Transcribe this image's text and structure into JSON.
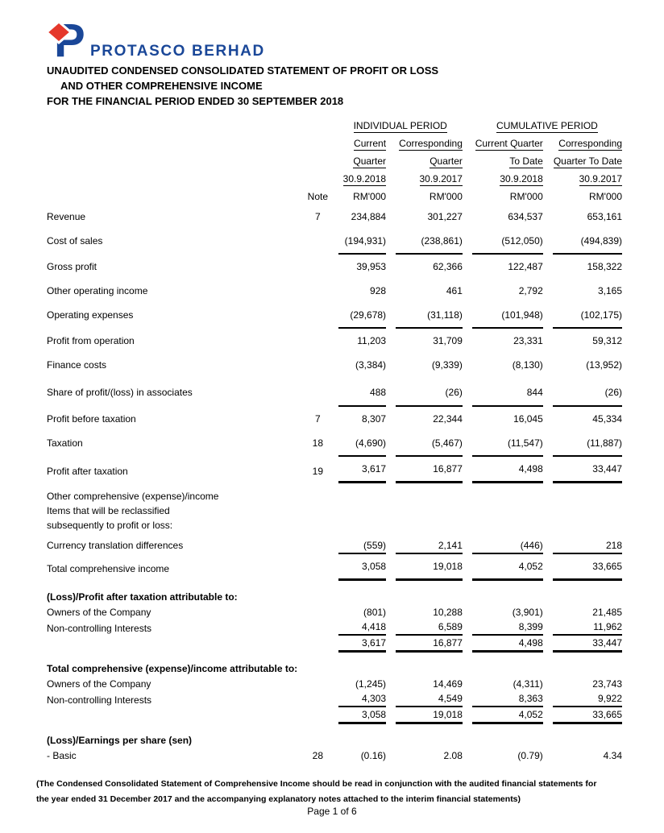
{
  "brand": {
    "company": "PROTASCO BERHAD",
    "blue": "#1a4798",
    "red": "#e5382b",
    "logo_icon": "protasco-p-with-red-diamond"
  },
  "title": {
    "line1": "UNAUDITED CONDENSED CONSOLIDATED STATEMENT OF PROFIT OR LOSS",
    "line2": "AND OTHER COMPREHENSIVE INCOME",
    "line3": "FOR THE FINANCIAL PERIOD ENDED 30 SEPTEMBER 2018"
  },
  "table": {
    "group_headers": [
      {
        "label": "INDIVIDUAL PERIOD"
      },
      {
        "label": "CUMULATIVE PERIOD"
      }
    ],
    "note_header": "Note",
    "columns": [
      {
        "line1": "Current",
        "line2": "Quarter",
        "date": "30.9.2018",
        "unit": "RM'000"
      },
      {
        "line1": "Corresponding",
        "line2": "Quarter",
        "date": "30.9.2017",
        "unit": "RM'000"
      },
      {
        "line1": "Current Quarter",
        "line2": "To Date",
        "date": "30.9.2018",
        "unit": "RM'000"
      },
      {
        "line1": "Corresponding",
        "line2": "Quarter To Date",
        "date": "30.9.2017",
        "unit": "RM'000"
      }
    ],
    "rows": [
      {
        "label": "Revenue",
        "note": "7",
        "values": [
          "234,884",
          "301,227",
          "634,537",
          "653,161"
        ],
        "cls": "n"
      },
      {
        "label": "Cost of sales",
        "note": "",
        "values": [
          "(194,931)",
          "(238,861)",
          "(512,050)",
          "(494,839)"
        ],
        "cls": "n"
      },
      {
        "label": "Gross profit",
        "note": "",
        "values": [
          "39,953",
          "62,366",
          "122,487",
          "158,322"
        ],
        "cls": "n lt"
      },
      {
        "label": "Other operating income",
        "note": "",
        "values": [
          "928",
          "461",
          "2,792",
          "3,165"
        ],
        "cls": "n"
      },
      {
        "label": "Operating expenses",
        "note": "",
        "values": [
          "(29,678)",
          "(31,118)",
          "(101,948)",
          "(102,175)"
        ],
        "cls": "n"
      },
      {
        "label": "Profit from operation",
        "note": "",
        "values": [
          "11,203",
          "31,709",
          "23,331",
          "59,312"
        ],
        "cls": "n lt"
      },
      {
        "label": "Finance costs",
        "note": "",
        "values": [
          "(3,384)",
          "(9,339)",
          "(8,130)",
          "(13,952)"
        ],
        "cls": "n"
      },
      {
        "label": "Share of profit/(loss) in associates",
        "note": "",
        "values": [
          "488",
          "(26)",
          "844",
          "(26)"
        ],
        "cls": "n sp"
      },
      {
        "label": "Profit before taxation",
        "note": "7",
        "values": [
          "8,307",
          "22,344",
          "16,045",
          "45,334"
        ],
        "cls": "n lt"
      },
      {
        "label": "Taxation",
        "note": "18",
        "values": [
          "(4,690)",
          "(5,467)",
          "(11,547)",
          "(11,887)"
        ],
        "cls": "n"
      },
      {
        "label": "Profit after taxation",
        "note": "19",
        "values": [
          "3,617",
          "16,877",
          "4,498",
          "33,447"
        ],
        "cls": "n lt lb"
      },
      {
        "label": "Other comprehensive (expense)/income",
        "note": "",
        "cls": "t mt"
      },
      {
        "label": "Items that will be reclassified",
        "note": "",
        "cls": "t"
      },
      {
        "label": "subsequently to profit or loss:",
        "note": "",
        "cls": "t"
      },
      {
        "label": "Currency translation differences",
        "note": "",
        "values": [
          "(559)",
          "2,141",
          "(446)",
          "218"
        ],
        "cls": "t mt"
      },
      {
        "label": "Total comprehensive income",
        "note": "",
        "values": [
          "3,058",
          "19,018",
          "4,052",
          "33,665"
        ],
        "cls": "n lt lb"
      },
      {
        "label": "(Loss)/Profit after taxation attributable to:",
        "note": "",
        "cls": "sec"
      },
      {
        "label": "Owners of the Company",
        "note": "",
        "values": [
          "(801)",
          "10,288",
          "(3,901)",
          "21,485"
        ],
        "cls": "t"
      },
      {
        "label": "Non-controlling Interests",
        "note": "",
        "values": [
          "4,418",
          "6,589",
          "8,399",
          "11,962"
        ],
        "cls": "t ub"
      },
      {
        "label": "",
        "note": "",
        "values": [
          "3,617",
          "16,877",
          "4,498",
          "33,447"
        ],
        "cls": "t lb"
      },
      {
        "label": "Total comprehensive (expense)/income attributable to:",
        "note": "",
        "cls": "sec"
      },
      {
        "label": "Owners of the Company",
        "note": "",
        "values": [
          "(1,245)",
          "14,469",
          "(4,311)",
          "23,743"
        ],
        "cls": "t"
      },
      {
        "label": "Non-controlling Interests",
        "note": "",
        "values": [
          "4,303",
          "4,549",
          "8,363",
          "9,922"
        ],
        "cls": "t ub"
      },
      {
        "label": "",
        "note": "",
        "values": [
          "3,058",
          "19,018",
          "4,052",
          "33,665"
        ],
        "cls": "t lb"
      },
      {
        "label": "(Loss)/Earnings per share (sen)",
        "note": "",
        "cls": "sec"
      },
      {
        "label": "- Basic",
        "note": "28",
        "values": [
          "(0.16)",
          "2.08",
          "(0.79)",
          "4.34"
        ],
        "cls": "t"
      }
    ]
  },
  "footnote": "(The Condensed Consolidated Statement of Comprehensive Income should be read in conjunction with the audited financial statements for the year ended 31 December 2017 and the accompanying explanatory notes attached to the interim financial statements)",
  "page_footer": "Page 1 of 6"
}
